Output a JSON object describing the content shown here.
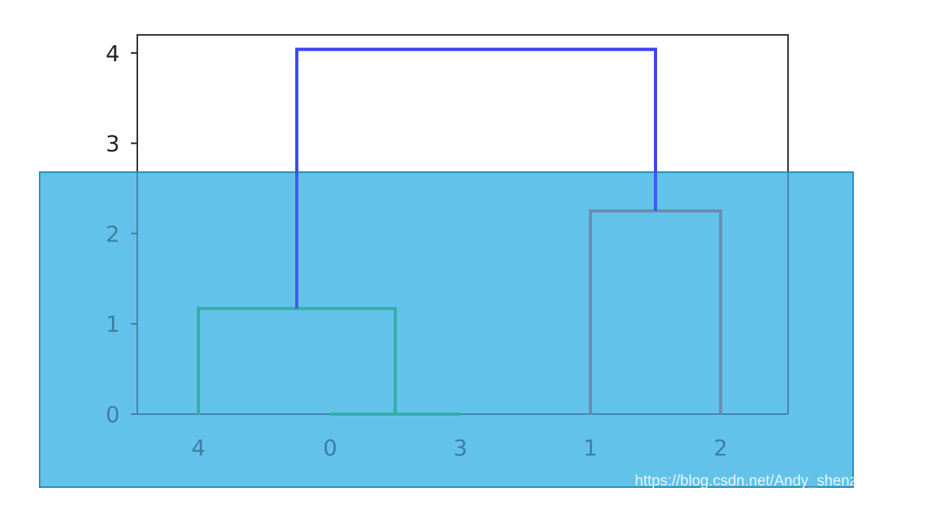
{
  "chart_data": {
    "type": "dendrogram",
    "leaf_labels": [
      "4",
      "0",
      "3",
      "1",
      "2"
    ],
    "yticks": [
      0,
      1,
      2,
      3,
      4
    ],
    "ylim": [
      0,
      4.2
    ],
    "merges": [
      {
        "left": "0",
        "right": "3",
        "height": 0.0,
        "color": "#2eaaa0"
      },
      {
        "left": "4",
        "right": "(0,3)",
        "height": 1.17,
        "color": "#2eaaa0"
      },
      {
        "left": "1",
        "right": "2",
        "height": 2.25,
        "color": "#6b86a8"
      },
      {
        "left": "(4,0,3)",
        "right": "(1,2)",
        "height": 4.04,
        "color": "#3f48f0"
      }
    ],
    "overlay_color": "#5dc0e8"
  },
  "watermark": "https://blog.csdn.net/Andy_shenzl"
}
